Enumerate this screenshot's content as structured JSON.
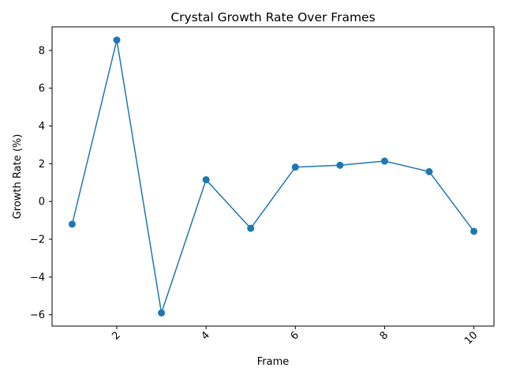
{
  "chart_data": {
    "type": "line",
    "title": "Crystal Growth Rate Over Frames",
    "xlabel": "Frame",
    "ylabel": "Growth Rate (%)",
    "xlim": [
      0.55,
      10.45
    ],
    "ylim": [
      -6.6,
      9.25
    ],
    "x_ticks": [
      2,
      4,
      6,
      8,
      10
    ],
    "y_ticks": [
      -6,
      -4,
      -2,
      0,
      2,
      4,
      6,
      8
    ],
    "x_tick_rotation": 45,
    "grid": false,
    "series": [
      {
        "x": [
          1,
          2,
          3,
          4,
          5,
          6,
          7,
          8,
          9,
          10
        ],
        "values": [
          -1.2,
          8.55,
          -5.9,
          1.15,
          -1.42,
          1.82,
          1.92,
          2.14,
          1.58,
          -1.58
        ],
        "marker": "circle",
        "color": "#1f77b4"
      }
    ]
  }
}
